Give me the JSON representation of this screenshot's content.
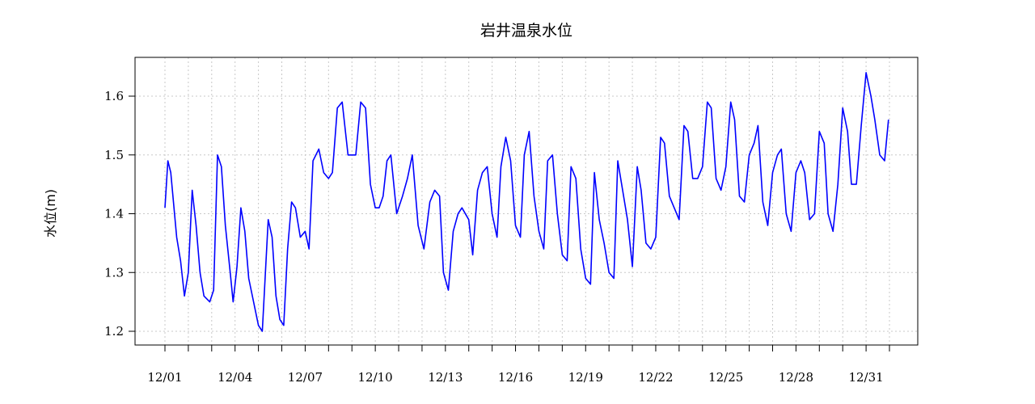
{
  "chart_data": {
    "type": "line",
    "title": "岩井温泉水位",
    "xlabel": "",
    "ylabel": "水位(m)",
    "ylim": [
      1.175,
      1.665
    ],
    "yticks": [
      1.2,
      1.3,
      1.4,
      1.5,
      1.6
    ],
    "ytick_labels": [
      "1.2",
      "1.3",
      "1.4",
      "1.5",
      "1.6"
    ],
    "x_domain": [
      "12/01",
      "12/32"
    ],
    "xticks": [
      "12/01",
      "12/02",
      "12/03",
      "12/04",
      "12/05",
      "12/06",
      "12/07",
      "12/08",
      "12/09",
      "12/10",
      "12/11",
      "12/12",
      "12/13",
      "12/14",
      "12/15",
      "12/16",
      "12/17",
      "12/18",
      "12/19",
      "12/20",
      "12/21",
      "12/22",
      "12/23",
      "12/24",
      "12/25",
      "12/26",
      "12/27",
      "12/28",
      "12/29",
      "12/30",
      "12/31",
      "12/32"
    ],
    "xtick_labels": [
      {
        "x": "12/01",
        "label": "12/01"
      },
      {
        "x": "12/04",
        "label": "12/04"
      },
      {
        "x": "12/07",
        "label": "12/07"
      },
      {
        "x": "12/10",
        "label": "12/10"
      },
      {
        "x": "12/13",
        "label": "12/13"
      },
      {
        "x": "12/16",
        "label": "12/16"
      },
      {
        "x": "12/19",
        "label": "12/19"
      },
      {
        "x": "12/22",
        "label": "12/22"
      },
      {
        "x": "12/25",
        "label": "12/25"
      },
      {
        "x": "12/28",
        "label": "12/28"
      },
      {
        "x": "12/31",
        "label": "12/31"
      }
    ],
    "grid": true,
    "series": [
      {
        "color": "#0000ff",
        "x": [
          "12/01 00:00",
          "12/01 03:00",
          "12/01 06:00",
          "12/01 12:00",
          "12/01 16:00",
          "12/01 20:00",
          "12/02 00:00",
          "12/02 04:00",
          "12/02 08:00",
          "12/02 12:00",
          "12/02 16:00",
          "12/02 22:00",
          "12/03 02:00",
          "12/03 06:00",
          "12/03 10:00",
          "12/03 14:00",
          "12/03 19:00",
          "12/03 22:00",
          "12/04 02:00",
          "12/04 06:00",
          "12/04 10:00",
          "12/04 14:00",
          "12/04 19:00",
          "12/05 00:00",
          "12/05 04:00",
          "12/05 10:00",
          "12/05 14:00",
          "12/05 18:00",
          "12/05 22:00",
          "12/06 02:00",
          "12/06 06:00",
          "12/06 10:00",
          "12/06 14:00",
          "12/06 19:00",
          "12/07 00:00",
          "12/07 04:00",
          "12/07 08:00",
          "12/07 14:00",
          "12/07 19:00",
          "12/08 00:00",
          "12/08 04:00",
          "12/08 09:00",
          "12/08 14:00",
          "12/08 20:00",
          "12/09 00:00",
          "12/09 04:00",
          "12/09 09:00",
          "12/09 14:00",
          "12/09 19:00",
          "12/10 00:00",
          "12/10 04:00",
          "12/10 08:00",
          "12/10 12:00",
          "12/10 16:00",
          "12/10 22:00",
          "12/11 04:00",
          "12/11 09:00",
          "12/11 14:00",
          "12/11 20:00",
          "12/12 02:00",
          "12/12 08:00",
          "12/12 13:00",
          "12/12 18:00",
          "12/12 22:00",
          "12/13 03:00",
          "12/13 08:00",
          "12/13 13:00",
          "12/13 17:00",
          "12/14 00:00",
          "12/14 04:00",
          "12/14 09:00",
          "12/14 14:00",
          "12/14 19:00",
          "12/15 00:00",
          "12/15 05:00",
          "12/15 09:00",
          "12/15 14:00",
          "12/15 19:00",
          "12/16 00:00",
          "12/16 05:00",
          "12/16 09:00",
          "12/16 14:00",
          "12/16 19:00",
          "12/17 00:00",
          "12/17 05:00",
          "12/17 09:00",
          "12/17 14:00",
          "12/17 19:00",
          "12/18 00:00",
          "12/18 05:00",
          "12/18 09:00",
          "12/18 14:00",
          "12/18 19:00",
          "12/19 00:00",
          "12/19 05:00",
          "12/19 09:00",
          "12/19 14:00",
          "12/19 19:00",
          "12/20 00:00",
          "12/20 05:00",
          "12/20 09:00",
          "12/20 14:00",
          "12/20 19:00",
          "12/21 00:00",
          "12/21 05:00",
          "12/21 09:00",
          "12/21 14:00",
          "12/21 19:00",
          "12/22 00:00",
          "12/22 05:00",
          "12/22 09:00",
          "12/22 14:00",
          "12/22 19:00",
          "12/23 00:00",
          "12/23 05:00",
          "12/23 09:00",
          "12/23 14:00",
          "12/23 19:00",
          "12/24 00:00",
          "12/24 05:00",
          "12/24 09:00",
          "12/24 14:00",
          "12/24 19:00",
          "12/25 00:00",
          "12/25 05:00",
          "12/25 09:00",
          "12/25 14:00",
          "12/25 19:00",
          "12/26 00:00",
          "12/26 05:00",
          "12/26 09:00",
          "12/26 14:00",
          "12/26 19:00",
          "12/27 00:00",
          "12/27 05:00",
          "12/27 09:00",
          "12/27 14:00",
          "12/27 19:00",
          "12/28 00:00",
          "12/28 05:00",
          "12/28 09:00",
          "12/28 14:00",
          "12/28 19:00",
          "12/29 00:00",
          "12/29 05:00",
          "12/29 09:00",
          "12/29 14:00",
          "12/29 19:00",
          "12/30 00:00",
          "12/30 05:00",
          "12/30 09:00",
          "12/30 14:00",
          "12/30 19:00",
          "12/31 00:00",
          "12/31 05:00",
          "12/31 09:00",
          "12/31 14:00",
          "12/31 19:00",
          "12/31 23:00"
        ],
        "y": [
          1.41,
          1.49,
          1.47,
          1.36,
          1.32,
          1.26,
          1.3,
          1.44,
          1.38,
          1.3,
          1.26,
          1.25,
          1.27,
          1.5,
          1.48,
          1.38,
          1.3,
          1.25,
          1.31,
          1.41,
          1.37,
          1.29,
          1.25,
          1.21,
          1.2,
          1.39,
          1.36,
          1.26,
          1.22,
          1.21,
          1.34,
          1.42,
          1.41,
          1.36,
          1.37,
          1.34,
          1.49,
          1.51,
          1.47,
          1.46,
          1.47,
          1.58,
          1.59,
          1.5,
          1.5,
          1.5,
          1.59,
          1.58,
          1.45,
          1.41,
          1.41,
          1.43,
          1.49,
          1.5,
          1.4,
          1.43,
          1.46,
          1.5,
          1.38,
          1.34,
          1.42,
          1.44,
          1.43,
          1.3,
          1.27,
          1.37,
          1.4,
          1.41,
          1.39,
          1.33,
          1.44,
          1.47,
          1.48,
          1.4,
          1.36,
          1.48,
          1.53,
          1.49,
          1.38,
          1.36,
          1.5,
          1.54,
          1.43,
          1.37,
          1.34,
          1.49,
          1.5,
          1.4,
          1.33,
          1.32,
          1.48,
          1.46,
          1.34,
          1.29,
          1.28,
          1.47,
          1.39,
          1.35,
          1.3,
          1.29,
          1.49,
          1.44,
          1.39,
          1.31,
          1.48,
          1.44,
          1.35,
          1.34,
          1.36,
          1.53,
          1.52,
          1.43,
          1.41,
          1.39,
          1.55,
          1.54,
          1.46,
          1.46,
          1.48,
          1.59,
          1.58,
          1.46,
          1.44,
          1.48,
          1.59,
          1.56,
          1.43,
          1.42,
          1.5,
          1.52,
          1.55,
          1.42,
          1.38,
          1.47,
          1.5,
          1.51,
          1.4,
          1.37,
          1.47,
          1.49,
          1.47,
          1.39,
          1.4,
          1.54,
          1.52,
          1.4,
          1.37,
          1.45,
          1.58,
          1.54,
          1.45,
          1.45,
          1.55,
          1.64,
          1.6,
          1.56,
          1.5,
          1.49,
          1.56
        ]
      }
    ]
  }
}
